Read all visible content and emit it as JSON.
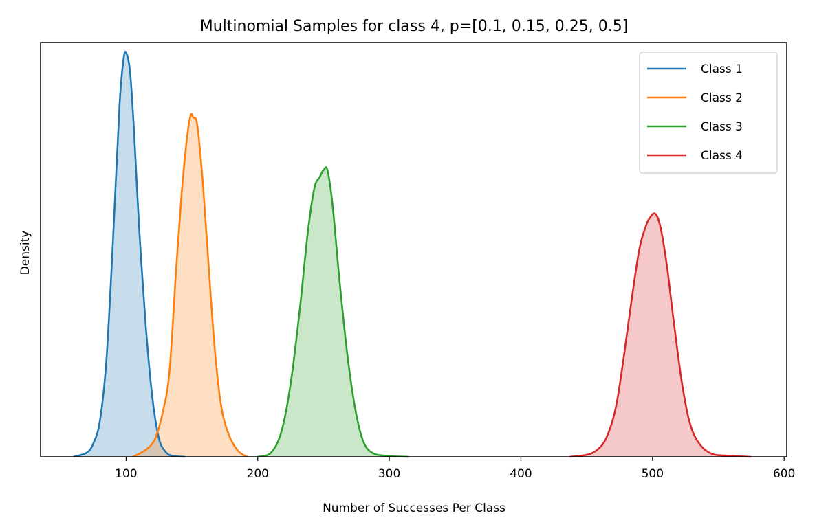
{
  "chart_data": {
    "type": "area",
    "title": "Multinomial Samples for class 4, p=[0.1, 0.15, 0.25, 0.5]",
    "xlabel": "Number of Successes Per Class",
    "ylabel": "Density",
    "xlim": [
      35,
      602
    ],
    "ylim": [
      0,
      0.0409
    ],
    "xticks": [
      100,
      200,
      300,
      400,
      500,
      600
    ],
    "y_tick_labels_shown": false,
    "grid": false,
    "legend_position": "upper right",
    "series": [
      {
        "name": "Class 1",
        "color": "#1f77b4",
        "points": [
          [
            60,
            0
          ],
          [
            70,
            0.0004
          ],
          [
            75,
            0.0013
          ],
          [
            80,
            0.0035
          ],
          [
            85,
            0.0095
          ],
          [
            90,
            0.0213
          ],
          [
            95,
            0.0347
          ],
          [
            98,
            0.0392
          ],
          [
            100,
            0.0399
          ],
          [
            103,
            0.038
          ],
          [
            106,
            0.0322
          ],
          [
            110,
            0.0224
          ],
          [
            115,
            0.0128
          ],
          [
            120,
            0.0058
          ],
          [
            125,
            0.0018
          ],
          [
            130,
            0.0005
          ],
          [
            135,
            0.0001
          ],
          [
            145,
            0
          ]
        ]
      },
      {
        "name": "Class 2",
        "color": "#ff7f0e",
        "points": [
          [
            105,
            0
          ],
          [
            115,
            0.0007
          ],
          [
            122,
            0.0018
          ],
          [
            128,
            0.0045
          ],
          [
            133,
            0.0085
          ],
          [
            138,
            0.0185
          ],
          [
            142,
            0.0257
          ],
          [
            146,
            0.0312
          ],
          [
            149,
            0.0337
          ],
          [
            151,
            0.0335
          ],
          [
            154,
            0.0328
          ],
          [
            158,
            0.0275
          ],
          [
            162,
            0.0202
          ],
          [
            167,
            0.0112
          ],
          [
            172,
            0.0052
          ],
          [
            178,
            0.0022
          ],
          [
            185,
            0.0006
          ],
          [
            192,
            0
          ]
        ]
      },
      {
        "name": "Class 3",
        "color": "#2ca02c",
        "points": [
          [
            200,
            0
          ],
          [
            210,
            0.0004
          ],
          [
            218,
            0.0025
          ],
          [
            225,
            0.0072
          ],
          [
            232,
            0.0146
          ],
          [
            238,
            0.0221
          ],
          [
            243,
            0.0265
          ],
          [
            247,
            0.0276
          ],
          [
            250,
            0.0283
          ],
          [
            253,
            0.0283
          ],
          [
            257,
            0.0247
          ],
          [
            262,
            0.0176
          ],
          [
            268,
            0.0102
          ],
          [
            274,
            0.0048
          ],
          [
            280,
            0.0016
          ],
          [
            287,
            0.0004
          ],
          [
            298,
            0.0001
          ],
          [
            315,
            0
          ]
        ]
      },
      {
        "name": "Class 4",
        "color": "#d62728",
        "points": [
          [
            437,
            0
          ],
          [
            450,
            0.0002
          ],
          [
            458,
            0.0007
          ],
          [
            465,
            0.0019
          ],
          [
            472,
            0.0048
          ],
          [
            478,
            0.0097
          ],
          [
            484,
            0.0154
          ],
          [
            490,
            0.0205
          ],
          [
            495,
            0.0228
          ],
          [
            498,
            0.0236
          ],
          [
            502,
            0.024
          ],
          [
            506,
            0.0227
          ],
          [
            511,
            0.0188
          ],
          [
            516,
            0.0135
          ],
          [
            522,
            0.0076
          ],
          [
            528,
            0.0035
          ],
          [
            535,
            0.0014
          ],
          [
            545,
            0.0003
          ],
          [
            560,
            0.0001
          ],
          [
            575,
            0
          ]
        ]
      }
    ]
  }
}
